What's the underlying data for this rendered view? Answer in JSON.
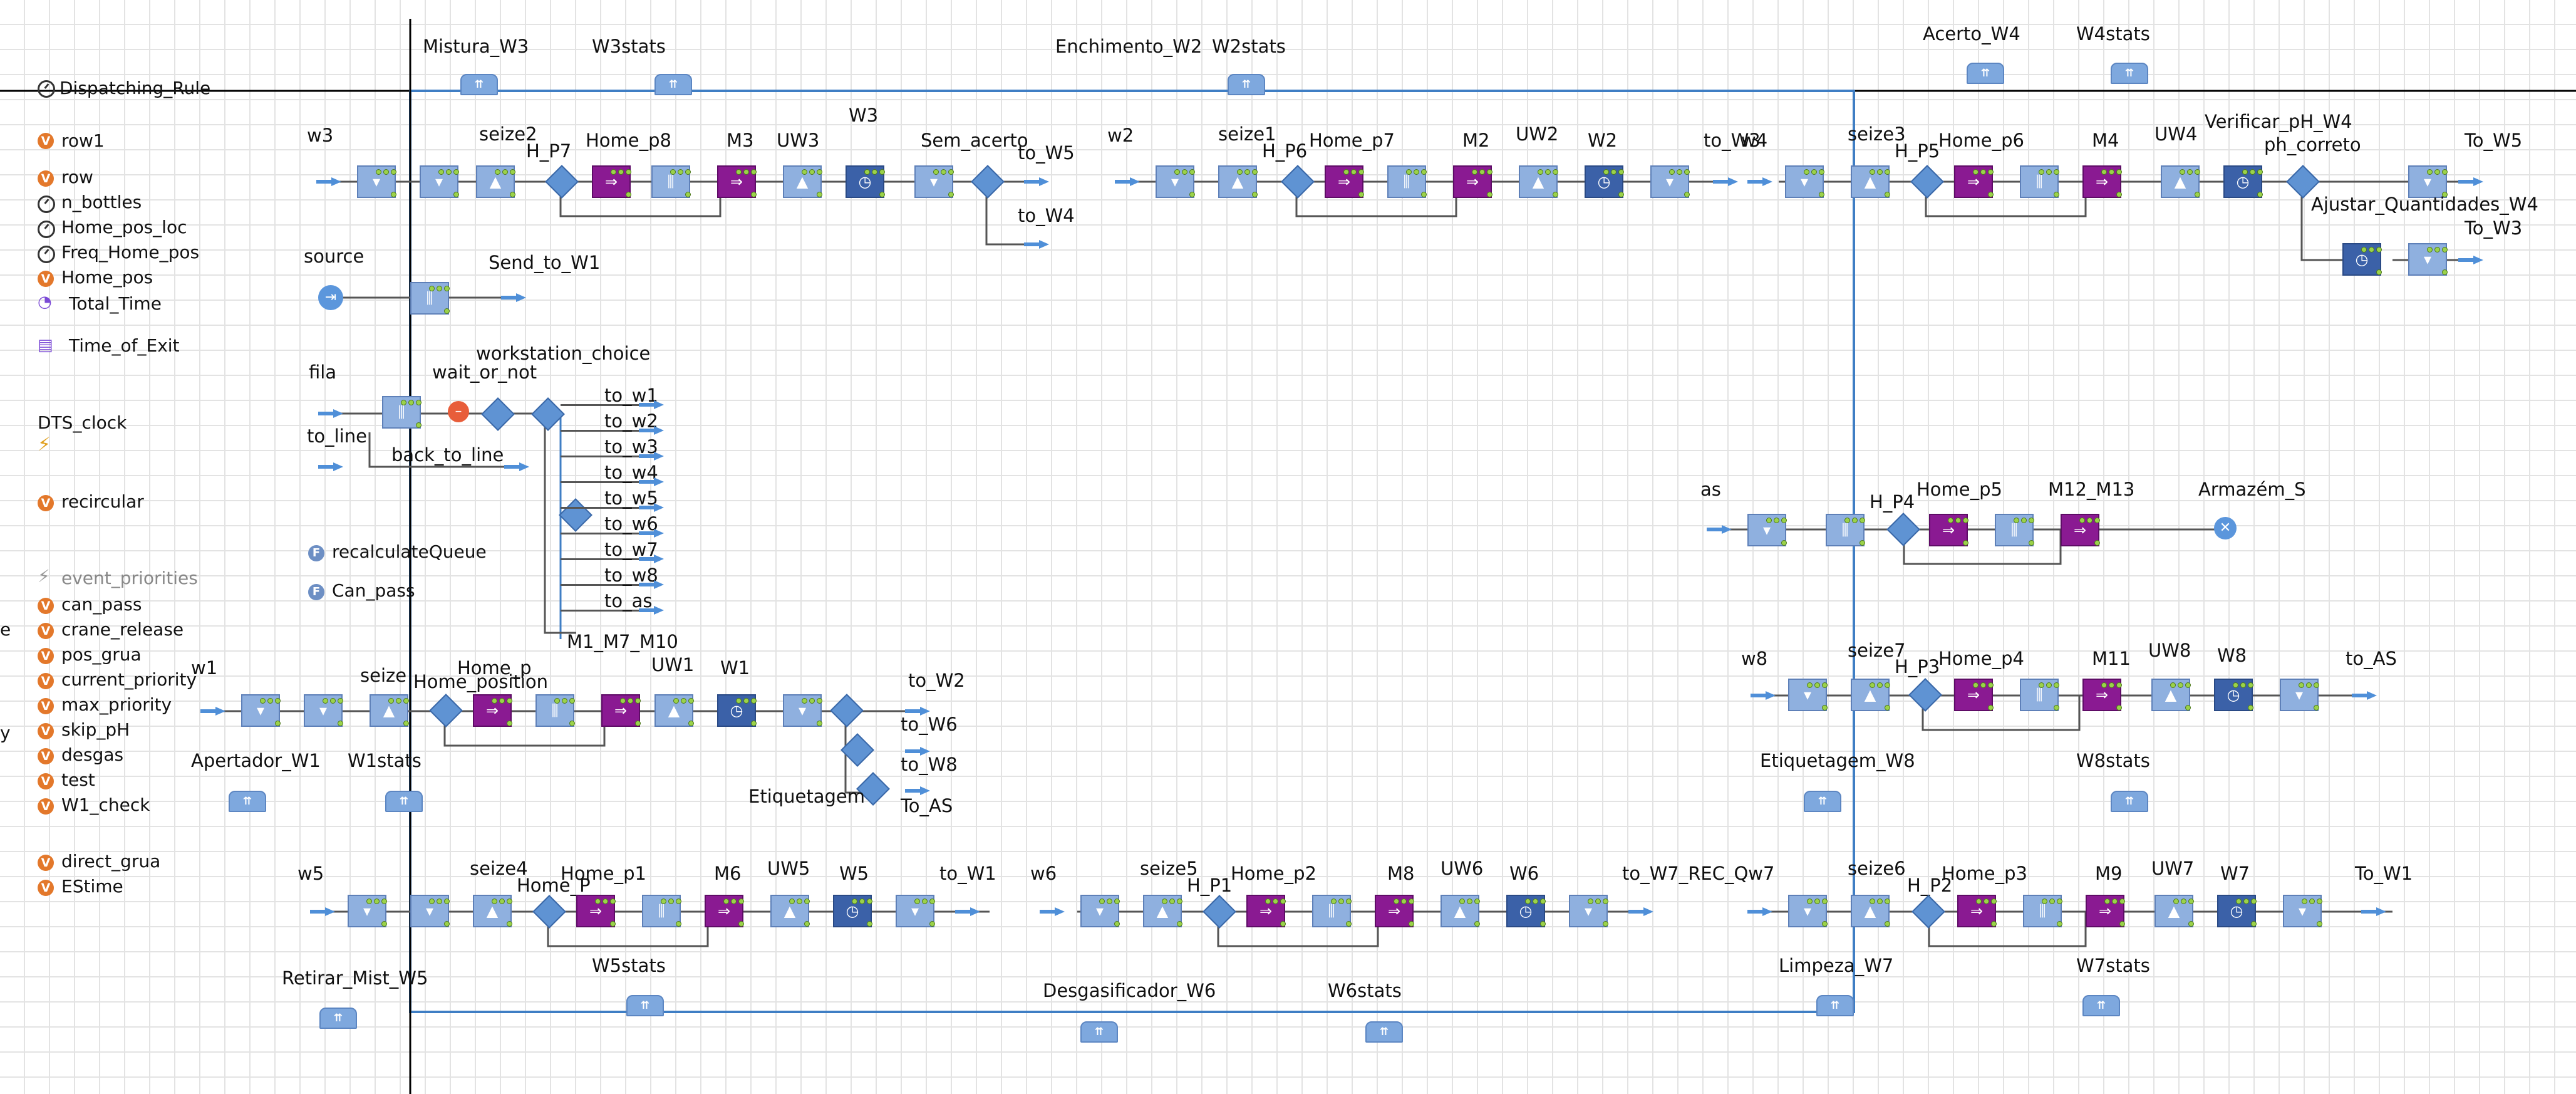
{
  "colors": {
    "accent": "#4f8fd8",
    "block": "#8fb0df",
    "service": "#8a1a92",
    "delay": "#3b61a8",
    "variable": "#e3782b",
    "function": "#6d8fc4"
  },
  "sidebar": {
    "dispatching_rule": "Dispatching_Rule",
    "items": [
      {
        "label": "row1",
        "icon": "variable-icon"
      },
      {
        "label": "row",
        "icon": "variable-icon"
      },
      {
        "label": "n_bottles",
        "icon": "parameter-icon"
      },
      {
        "label": "Home_pos_loc",
        "icon": "parameter-icon"
      },
      {
        "label": "Freq_Home_pos",
        "icon": "parameter-icon"
      },
      {
        "label": "Home_pos",
        "icon": "variable-icon"
      },
      {
        "label": "Total_Time",
        "icon": "statistics-icon"
      }
    ],
    "time_of_exit": "Time_of_Exit",
    "dts_clock": "DTS_clock",
    "recircular": "recircular",
    "functions": [
      "recalculateQueue",
      "Can_pass"
    ],
    "event_priorities": "event_priorities",
    "vars2": [
      "can_pass",
      "crane_release",
      "pos_grua",
      "current_priority",
      "max_priority",
      "skip_pH",
      "desgas",
      "test",
      "W1_check"
    ],
    "vars3": [
      "direct_grua",
      "EStime"
    ],
    "clip_e": "e",
    "clip_y": "y"
  },
  "stats_top": [
    "Mistura_W3",
    "W3stats",
    "Enchimento_W2",
    "W2stats",
    "Acerto_W4",
    "W4stats"
  ],
  "row_w3": {
    "source": "w3",
    "seize": "seize2",
    "hp": "H_P7",
    "home": "Home_p8",
    "m": "M3",
    "uw": "UW3",
    "w": "W3",
    "sel": "Sem_acerto",
    "out1": "to_W5",
    "out2": "to_W4"
  },
  "row_w2": {
    "source": "w2",
    "seize": "seize1",
    "hp": "H_P6",
    "home": "Home_p7",
    "m": "M2",
    "uw": "UW2",
    "w": "W2",
    "out1": "to_W3"
  },
  "row_w4": {
    "source": "w4",
    "seize": "seize3",
    "hp": "H_P5",
    "home": "Home_p6",
    "m": "M4",
    "uw": "UW4",
    "verify": "Verificar_pH_W4",
    "ph": "ph_correto",
    "out1": "To_W5",
    "adjust": "Ajustar_Quantidades_W4",
    "out2": "To_W3"
  },
  "source_block": {
    "source": "source",
    "send": "Send_to_W1"
  },
  "fila_block": {
    "fila": "fila",
    "to_line": "to_line",
    "wait": "wait_or_not",
    "back": "back_to_line",
    "choice": "workstation_choice",
    "outs": [
      "to_w1",
      "to_w2",
      "to_w3",
      "to_w4",
      "to_w5",
      "to_w6",
      "to_w7",
      "to_w8",
      "to_as"
    ],
    "m1": "M1_M7_M10"
  },
  "row_as": {
    "source": "as",
    "hp": "H_P4",
    "home": "Home_p5",
    "m": "M12_M13",
    "store": "Armazém_S"
  },
  "row_w1": {
    "source": "w1",
    "seize": "seize",
    "home_p": "Home_p",
    "home_pos": "Home_position",
    "uw": "UW1",
    "w": "W1",
    "out1": "to_W2",
    "out2": "to_W6",
    "out3": "to_W8",
    "out4": "To_AS",
    "etiq": "Etiquetagem",
    "apertador": "Apertador_W1",
    "stats": "W1stats"
  },
  "row_w8": {
    "source": "w8",
    "seize": "seize7",
    "hp": "H_P3",
    "home": "Home_p4",
    "m": "M11",
    "uw": "UW8",
    "w": "W8",
    "out1": "to_AS",
    "etiq": "Etiquetagem_W8",
    "stats": "W8stats"
  },
  "row_w5": {
    "source": "w5",
    "seize": "seize4",
    "home_p": "Home_P",
    "home": "Home_p1",
    "m": "M6",
    "uw": "UW5",
    "w": "W5",
    "out1": "to_W1",
    "retirar": "Retirar_Mist_W5",
    "stats": "W5stats"
  },
  "row_w6": {
    "source": "w6",
    "seize": "seize5",
    "hp": "H_P1",
    "home": "Home_p2",
    "m": "M8",
    "uw": "UW6",
    "w": "W6",
    "out1": "to_W7_REC_Qw7",
    "desg": "Desgasificador_W6",
    "stats": "W6stats"
  },
  "row_w7": {
    "seize": "seize6",
    "hp": "H_P2",
    "home": "Home_p3",
    "m": "M9",
    "uw": "UW7",
    "w": "W7",
    "out1": "To_W1",
    "limpeza": "Limpeza_W7",
    "stats": "W7stats"
  }
}
